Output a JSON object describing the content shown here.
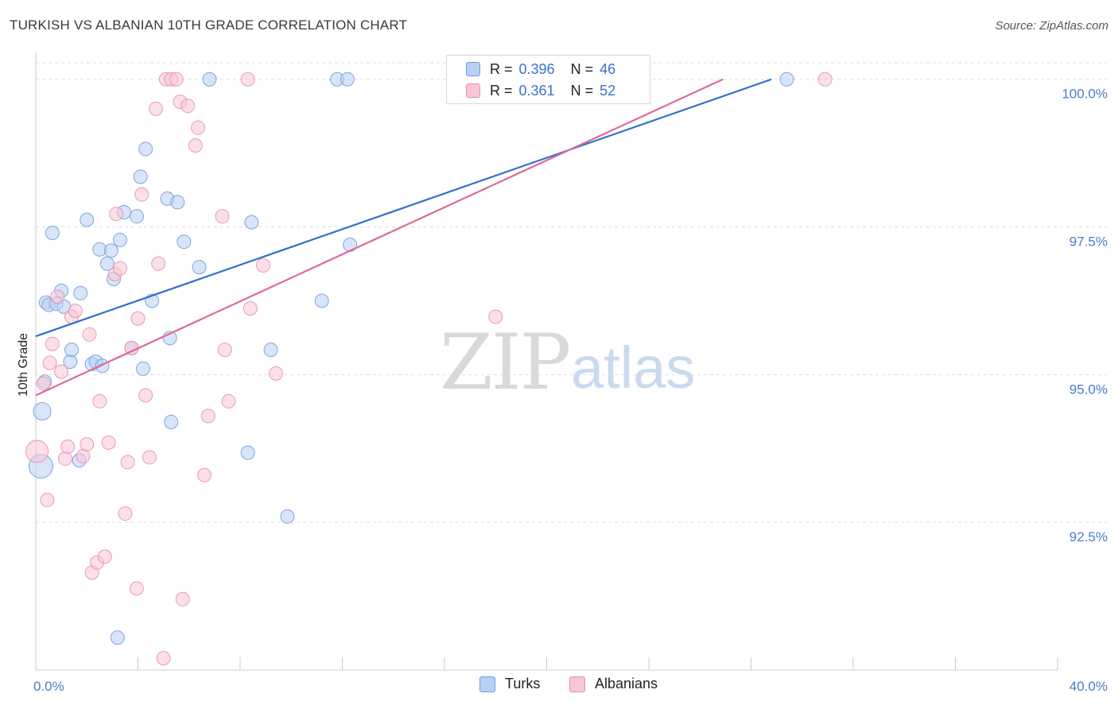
{
  "header": {
    "title": "TURKISH VS ALBANIAN 10TH GRADE CORRELATION CHART",
    "source": "Source: ZipAtlas.com"
  },
  "watermark": {
    "zip": "ZIP",
    "atlas": "atlas"
  },
  "legend": {
    "rows": [
      {
        "r_label": "R =",
        "r_value": "0.396",
        "n_label": "N =",
        "n_value": "46"
      },
      {
        "r_label": "R =",
        "r_value": "0.361",
        "n_label": "N =",
        "n_value": "52"
      }
    ]
  },
  "colors": {
    "turks_fill": "#b8d0f2",
    "turks_stroke": "#6c9ee0",
    "turks_line": "#2f6fd0",
    "albanians_fill": "#f8c6d6",
    "albanians_stroke": "#ea8fae",
    "albanians_line": "#e06a95",
    "grid": "#dddddd",
    "tick_text": "#4a7bd0"
  },
  "chart_data": {
    "type": "scatter",
    "title": "TURKISH VS ALBANIAN 10TH GRADE CORRELATION CHART",
    "xlabel": "",
    "ylabel": "10th Grade",
    "xlim": [
      0,
      40
    ],
    "ylim": [
      90.0,
      100.4
    ],
    "x_tick_labels": [
      {
        "value": 0,
        "label": "0.0%"
      },
      {
        "value": 40,
        "label": "40.0%"
      }
    ],
    "y_ticks": [
      {
        "value": 100.0,
        "label": "100.0%"
      },
      {
        "value": 97.5,
        "label": "97.5%"
      },
      {
        "value": 95.0,
        "label": "95.0%"
      },
      {
        "value": 92.5,
        "label": "92.5%"
      }
    ],
    "legend_position": "top-center",
    "series": [
      {
        "name": "Turks",
        "r": 0.396,
        "n": 46,
        "trend": {
          "x0": 0,
          "y0": 95.65,
          "x1": 28.8,
          "y1": 100.0
        },
        "points": [
          [
            0.2,
            93.45
          ],
          [
            0.25,
            94.38
          ],
          [
            0.35,
            94.88
          ],
          [
            0.4,
            96.22
          ],
          [
            0.5,
            96.18
          ],
          [
            0.65,
            97.4
          ],
          [
            0.8,
            96.2
          ],
          [
            1.0,
            96.42
          ],
          [
            1.1,
            96.15
          ],
          [
            1.35,
            95.22
          ],
          [
            1.4,
            95.42
          ],
          [
            1.7,
            93.55
          ],
          [
            1.75,
            96.38
          ],
          [
            2.0,
            97.62
          ],
          [
            2.2,
            95.18
          ],
          [
            2.35,
            95.22
          ],
          [
            2.5,
            97.12
          ],
          [
            2.6,
            95.15
          ],
          [
            2.8,
            96.88
          ],
          [
            2.95,
            97.1
          ],
          [
            3.05,
            96.62
          ],
          [
            3.3,
            97.28
          ],
          [
            3.45,
            97.75
          ],
          [
            3.2,
            90.55
          ],
          [
            3.75,
            95.45
          ],
          [
            3.95,
            97.68
          ],
          [
            4.1,
            98.35
          ],
          [
            4.2,
            95.1
          ],
          [
            4.3,
            98.82
          ],
          [
            4.55,
            96.25
          ],
          [
            5.15,
            97.98
          ],
          [
            5.25,
            95.62
          ],
          [
            5.3,
            94.2
          ],
          [
            5.55,
            97.92
          ],
          [
            5.8,
            97.25
          ],
          [
            6.4,
            96.82
          ],
          [
            6.8,
            100.0
          ],
          [
            8.3,
            93.68
          ],
          [
            8.45,
            97.58
          ],
          [
            9.2,
            95.42
          ],
          [
            9.85,
            92.6
          ],
          [
            11.2,
            96.25
          ],
          [
            11.8,
            100.0
          ],
          [
            12.2,
            100.0
          ],
          [
            12.3,
            97.2
          ],
          [
            29.4,
            100.0
          ]
        ]
      },
      {
        "name": "Albanians",
        "r": 0.361,
        "n": 52,
        "trend": {
          "x0": 0,
          "y0": 94.65,
          "x1": 26.9,
          "y1": 100.0
        },
        "points": [
          [
            0.05,
            93.7
          ],
          [
            0.3,
            94.85
          ],
          [
            0.45,
            92.88
          ],
          [
            0.55,
            95.2
          ],
          [
            0.65,
            95.52
          ],
          [
            0.85,
            96.32
          ],
          [
            1.0,
            95.05
          ],
          [
            1.15,
            93.58
          ],
          [
            1.25,
            93.78
          ],
          [
            1.4,
            95.98
          ],
          [
            1.55,
            96.08
          ],
          [
            1.85,
            93.62
          ],
          [
            2.0,
            93.82
          ],
          [
            2.1,
            95.68
          ],
          [
            2.2,
            91.65
          ],
          [
            2.4,
            91.82
          ],
          [
            2.5,
            94.55
          ],
          [
            2.7,
            91.92
          ],
          [
            2.85,
            93.85
          ],
          [
            3.1,
            96.7
          ],
          [
            3.15,
            97.72
          ],
          [
            3.3,
            96.8
          ],
          [
            3.5,
            92.65
          ],
          [
            3.6,
            93.52
          ],
          [
            3.75,
            95.45
          ],
          [
            3.95,
            91.38
          ],
          [
            4.0,
            95.95
          ],
          [
            4.15,
            98.05
          ],
          [
            4.3,
            94.65
          ],
          [
            4.45,
            93.6
          ],
          [
            4.7,
            99.5
          ],
          [
            4.8,
            96.88
          ],
          [
            5.0,
            90.2
          ],
          [
            5.1,
            100.0
          ],
          [
            5.3,
            100.0
          ],
          [
            5.5,
            100.0
          ],
          [
            5.65,
            99.62
          ],
          [
            5.75,
            91.2
          ],
          [
            5.95,
            99.55
          ],
          [
            6.25,
            98.88
          ],
          [
            6.35,
            99.18
          ],
          [
            6.6,
            93.3
          ],
          [
            6.75,
            94.3
          ],
          [
            7.3,
            97.68
          ],
          [
            7.4,
            95.42
          ],
          [
            7.55,
            94.55
          ],
          [
            8.3,
            100.0
          ],
          [
            8.4,
            96.12
          ],
          [
            8.9,
            96.85
          ],
          [
            9.4,
            95.02
          ],
          [
            18.0,
            95.98
          ],
          [
            30.9,
            100.0
          ]
        ]
      }
    ]
  }
}
